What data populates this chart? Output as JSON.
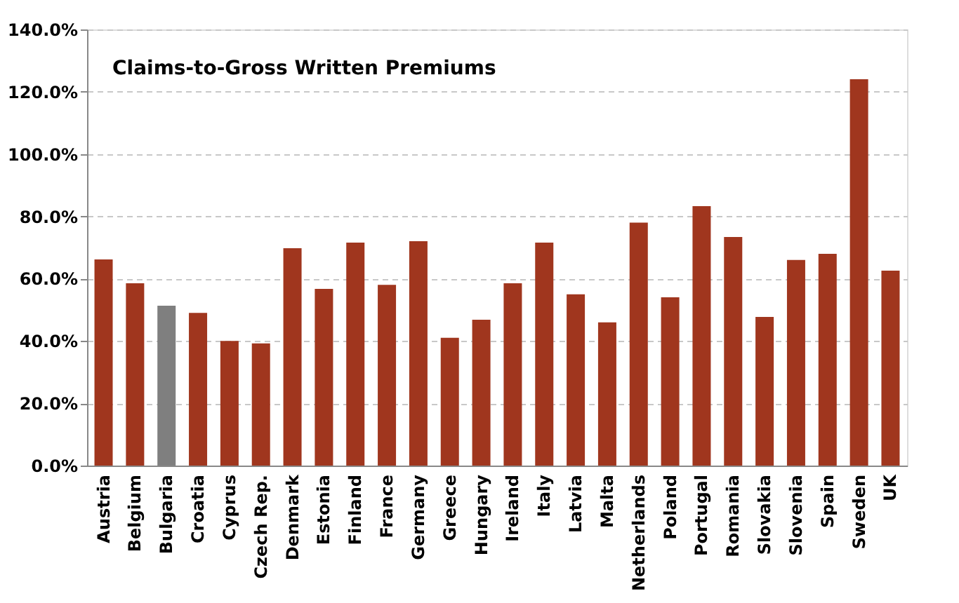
{
  "chart_data": {
    "type": "bar",
    "title": "Claims-to-Gross Written Premiums",
    "categories": [
      "Austria",
      "Belgium",
      "Bulgaria",
      "Croatia",
      "Cyprus",
      "Czech Rep.",
      "Denmark",
      "Estonia",
      "Finland",
      "France",
      "Germany",
      "Greece",
      "Hungary",
      "Ireland",
      "Italy",
      "Latvia",
      "Malta",
      "Netherlands",
      "Poland",
      "Portugal",
      "Romania",
      "Slovakia",
      "Slovenia",
      "Spain",
      "Sweden",
      "UK"
    ],
    "values": [
      66.2,
      58.5,
      51.3,
      49,
      40,
      39.2,
      69.8,
      56.7,
      71.6,
      58,
      72,
      41,
      46.8,
      58.5,
      71.6,
      55,
      46,
      78,
      54,
      83.3,
      73.4,
      47.7,
      66,
      68,
      124,
      62.6
    ],
    "colors": [
      "#a0361e",
      "#a0361e",
      "#7f7f7f",
      "#a0361e",
      "#a0361e",
      "#a0361e",
      "#a0361e",
      "#a0361e",
      "#a0361e",
      "#a0361e",
      "#a0361e",
      "#a0361e",
      "#a0361e",
      "#a0361e",
      "#a0361e",
      "#a0361e",
      "#a0361e",
      "#a0361e",
      "#a0361e",
      "#a0361e",
      "#a0361e",
      "#a0361e",
      "#a0361e",
      "#a0361e",
      "#a0361e",
      "#a0361e"
    ],
    "ylim": [
      0,
      140
    ],
    "yticks": [
      {
        "value": 0,
        "label": "0.0%"
      },
      {
        "value": 20,
        "label": "20.0%"
      },
      {
        "value": 40,
        "label": "40.0%"
      },
      {
        "value": 60,
        "label": "60.0%"
      },
      {
        "value": 80,
        "label": "80.0%"
      },
      {
        "value": 100,
        "label": "100.0%"
      },
      {
        "value": 120,
        "label": "120.0%"
      },
      {
        "value": 140,
        "label": "140.0%"
      }
    ],
    "grid": "y"
  }
}
